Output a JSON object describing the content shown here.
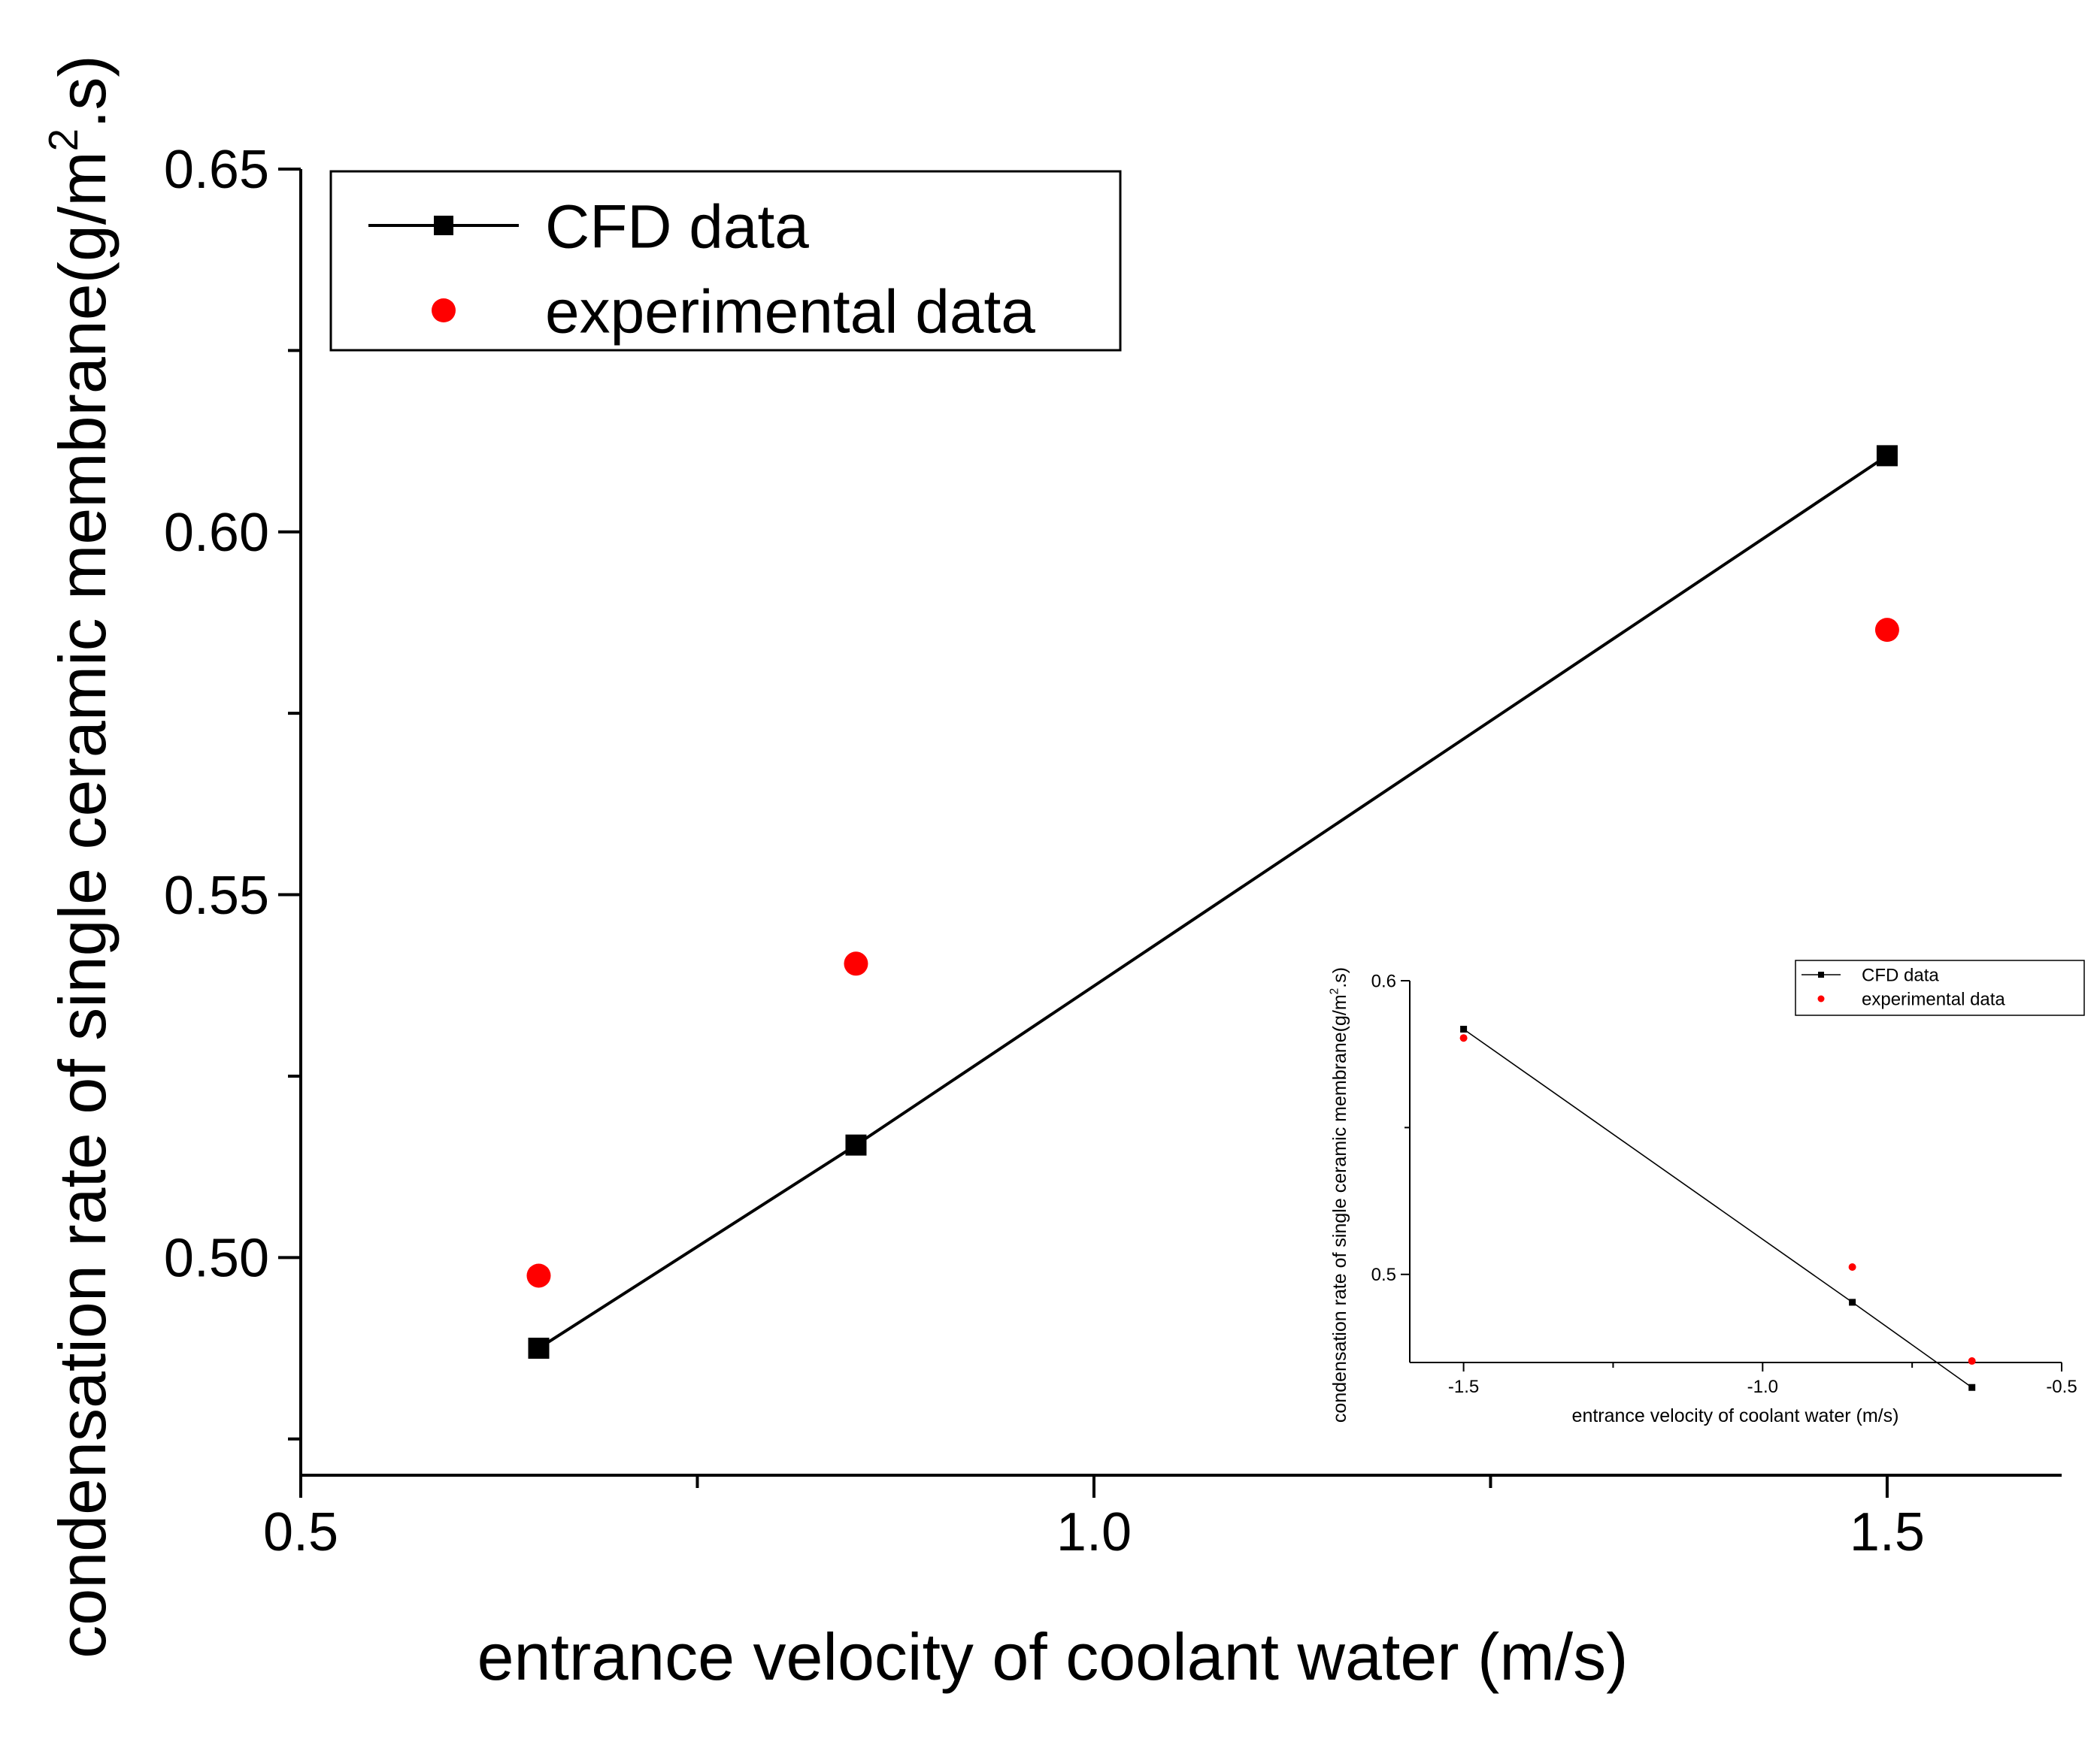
{
  "chart_data": [
    {
      "type": "line",
      "xlabel": "entrance velocity of coolant water (m/s)",
      "ylabel_main": "condensation rate of single ceramic membrane(g/m",
      "ylabel_sup": "2",
      "ylabel_end": ".s)",
      "xlim": [
        0.5,
        1.61
      ],
      "ylim": [
        0.47,
        0.65
      ],
      "xticks": [
        {
          "value": 0.5,
          "label": "0.5"
        },
        {
          "value": 1.0,
          "label": "1.0"
        },
        {
          "value": 1.5,
          "label": "1.5"
        }
      ],
      "xminor": [
        0.75,
        1.25
      ],
      "yticks": [
        {
          "value": 0.5,
          "label": "0.50"
        },
        {
          "value": 0.55,
          "label": "0.55"
        },
        {
          "value": 0.6,
          "label": "0.60"
        },
        {
          "value": 0.65,
          "label": "0.65"
        }
      ],
      "yminor": [
        0.475,
        0.525,
        0.575,
        0.625
      ],
      "grid": false,
      "legend_position": "top-left",
      "series": [
        {
          "name": "CFD data",
          "style": "line-square",
          "color": "#000000",
          "x": [
            0.65,
            0.85,
            1.5
          ],
          "y": [
            0.4875,
            0.5155,
            0.6105
          ]
        },
        {
          "name": "experimental data",
          "style": "dot",
          "color": "#ff0000",
          "x": [
            0.65,
            0.85,
            1.5
          ],
          "y": [
            0.4975,
            0.5405,
            0.5865
          ]
        }
      ]
    },
    {
      "type": "line",
      "role": "inset",
      "xlabel": "entrance velocity of coolant water (m/s)",
      "ylabel_main": "condensation rate of single ceramic membrane(g/m",
      "ylabel_sup": "2",
      "ylabel_end": ".s)",
      "xlim": [
        -1.59,
        -0.5
      ],
      "ylim": [
        0.47,
        0.6
      ],
      "xticks": [
        {
          "value": -1.5,
          "label": "-1.5"
        },
        {
          "value": -1.0,
          "label": "-1.0"
        },
        {
          "value": -0.5,
          "label": "-0.5"
        }
      ],
      "xminor": [
        -1.25,
        -0.75
      ],
      "yticks": [
        {
          "value": 0.5,
          "label": "0.5"
        },
        {
          "value": 0.6,
          "label": "0.6"
        }
      ],
      "yminor": [
        0.55
      ],
      "grid": false,
      "legend_position": "top-right",
      "series": [
        {
          "name": "CFD data",
          "style": "line-square",
          "color": "#000000",
          "x": [
            -1.5,
            -0.85,
            -0.65
          ],
          "y": [
            0.5835,
            0.4905,
            0.4615
          ]
        },
        {
          "name": "experimental data",
          "style": "dot",
          "color": "#ff0000",
          "x": [
            -1.5,
            -0.85,
            -0.65
          ],
          "y": [
            0.5805,
            0.5025,
            0.4705
          ]
        }
      ]
    }
  ]
}
